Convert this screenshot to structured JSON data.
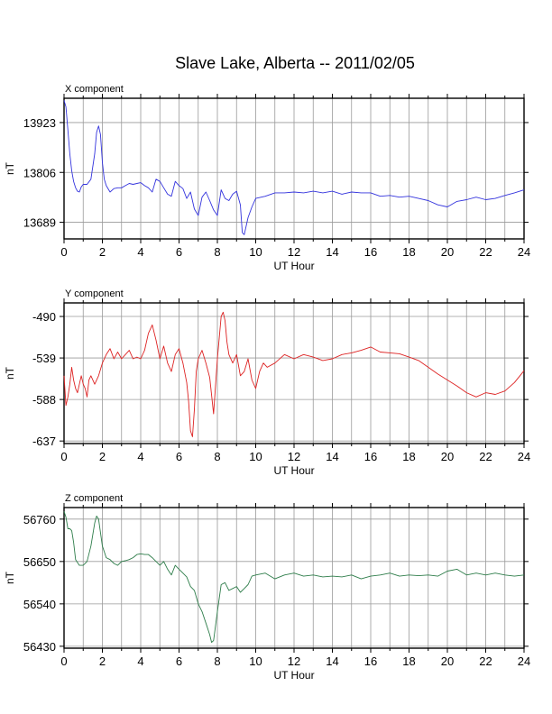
{
  "title": "Slave Lake, Alberta -- 2011/02/05",
  "chart_data": [
    {
      "type": "line",
      "panel_label": "X component",
      "xlabel": "UT Hour",
      "ylabel": "nT",
      "xlim": [
        0,
        24
      ],
      "ylim": [
        13650,
        13980
      ],
      "xticks": [
        "0",
        "2",
        "4",
        "6",
        "8",
        "10",
        "12",
        "14",
        "16",
        "18",
        "20",
        "22",
        "24"
      ],
      "yticks": [
        "13923",
        "13806",
        "13689"
      ],
      "ytick_values": [
        13923,
        13806,
        13689
      ],
      "grid": true,
      "color": "#3333dd",
      "x": [
        0,
        0.1,
        0.2,
        0.3,
        0.4,
        0.5,
        0.6,
        0.7,
        0.8,
        0.9,
        1.0,
        1.2,
        1.4,
        1.6,
        1.7,
        1.8,
        1.9,
        2.0,
        2.1,
        2.2,
        2.4,
        2.6,
        2.8,
        3.0,
        3.2,
        3.4,
        3.6,
        3.8,
        4.0,
        4.2,
        4.4,
        4.6,
        4.8,
        5.0,
        5.2,
        5.4,
        5.6,
        5.8,
        6.0,
        6.2,
        6.4,
        6.6,
        6.8,
        7.0,
        7.2,
        7.4,
        7.6,
        7.8,
        8.0,
        8.2,
        8.4,
        8.6,
        8.8,
        9.0,
        9.2,
        9.3,
        9.4,
        9.6,
        9.8,
        10.0,
        10.5,
        11.0,
        11.5,
        12.0,
        12.5,
        13.0,
        13.5,
        14.0,
        14.5,
        15.0,
        15.5,
        16.0,
        16.5,
        17.0,
        17.5,
        18.0,
        18.5,
        19.0,
        19.5,
        20.0,
        20.5,
        21.0,
        21.5,
        22.0,
        22.5,
        23.0,
        23.5,
        24.0
      ],
      "values": [
        13975,
        13960,
        13905,
        13850,
        13810,
        13785,
        13770,
        13762,
        13760,
        13772,
        13778,
        13778,
        13790,
        13850,
        13900,
        13915,
        13895,
        13830,
        13790,
        13775,
        13760,
        13768,
        13770,
        13770,
        13775,
        13780,
        13778,
        13780,
        13782,
        13775,
        13770,
        13760,
        13790,
        13785,
        13770,
        13755,
        13750,
        13785,
        13775,
        13768,
        13745,
        13760,
        13720,
        13705,
        13748,
        13760,
        13740,
        13718,
        13705,
        13765,
        13745,
        13740,
        13755,
        13762,
        13730,
        13665,
        13660,
        13700,
        13725,
        13745,
        13750,
        13758,
        13758,
        13760,
        13758,
        13762,
        13758,
        13762,
        13755,
        13760,
        13758,
        13758,
        13750,
        13752,
        13748,
        13750,
        13745,
        13740,
        13730,
        13725,
        13738,
        13742,
        13748,
        13742,
        13745,
        13752,
        13758,
        13765
      ]
    },
    {
      "type": "line",
      "panel_label": "Y component",
      "xlabel": "UT Hour",
      "ylabel": "nT",
      "xlim": [
        0,
        24
      ],
      "ylim": [
        -640,
        -474
      ],
      "xticks": [
        "0",
        "2",
        "4",
        "6",
        "8",
        "10",
        "12",
        "14",
        "16",
        "18",
        "20",
        "22",
        "24"
      ],
      "yticks": [
        "-490",
        "-539",
        "-588",
        "-637"
      ],
      "ytick_values": [
        -490,
        -539,
        -588,
        -637
      ],
      "grid": true,
      "color": "#dd2222",
      "x": [
        0,
        0.1,
        0.2,
        0.3,
        0.4,
        0.5,
        0.6,
        0.7,
        0.8,
        0.9,
        1.0,
        1.1,
        1.2,
        1.3,
        1.4,
        1.6,
        1.8,
        2.0,
        2.2,
        2.4,
        2.6,
        2.8,
        3.0,
        3.2,
        3.4,
        3.6,
        3.8,
        4.0,
        4.2,
        4.4,
        4.6,
        4.8,
        5.0,
        5.2,
        5.4,
        5.6,
        5.8,
        6.0,
        6.2,
        6.4,
        6.5,
        6.6,
        6.7,
        6.8,
        6.9,
        7.0,
        7.2,
        7.4,
        7.6,
        7.8,
        8.0,
        8.1,
        8.2,
        8.3,
        8.4,
        8.5,
        8.6,
        8.8,
        9.0,
        9.2,
        9.4,
        9.6,
        9.8,
        10.0,
        10.2,
        10.4,
        10.6,
        11.0,
        11.5,
        12.0,
        12.5,
        13.0,
        13.5,
        14.0,
        14.5,
        15.0,
        15.5,
        16.0,
        16.5,
        17.0,
        17.5,
        18.0,
        18.5,
        19.0,
        19.5,
        20.0,
        20.5,
        21.0,
        21.5,
        22.0,
        22.5,
        23.0,
        23.5,
        24.0
      ],
      "values": [
        -560,
        -595,
        -585,
        -570,
        -550,
        -565,
        -575,
        -580,
        -570,
        -560,
        -570,
        -575,
        -585,
        -565,
        -560,
        -570,
        -560,
        -545,
        -535,
        -528,
        -540,
        -532,
        -540,
        -535,
        -530,
        -540,
        -538,
        -540,
        -530,
        -510,
        -500,
        -518,
        -540,
        -525,
        -545,
        -555,
        -535,
        -528,
        -545,
        -568,
        -590,
        -625,
        -632,
        -600,
        -555,
        -540,
        -530,
        -545,
        -562,
        -605,
        -540,
        -515,
        -490,
        -485,
        -495,
        -520,
        -535,
        -545,
        -535,
        -560,
        -555,
        -540,
        -565,
        -575,
        -555,
        -545,
        -550,
        -545,
        -535,
        -540,
        -535,
        -538,
        -542,
        -540,
        -535,
        -533,
        -530,
        -526,
        -532,
        -533,
        -534,
        -538,
        -542,
        -550,
        -558,
        -565,
        -572,
        -580,
        -585,
        -580,
        -582,
        -578,
        -568,
        -554
      ]
    },
    {
      "type": "line",
      "panel_label": "Z component",
      "xlabel": "UT Hour",
      "ylabel": "nT",
      "xlim": [
        0,
        24
      ],
      "ylim": [
        56425,
        56790
      ],
      "xticks": [
        "0",
        "2",
        "4",
        "6",
        "8",
        "10",
        "12",
        "14",
        "16",
        "18",
        "20",
        "22",
        "24"
      ],
      "yticks": [
        "56760",
        "56650",
        "56540",
        "56430"
      ],
      "ytick_values": [
        56760,
        56650,
        56540,
        56430
      ],
      "grid": true,
      "color": "#2e7d4a",
      "x": [
        0,
        0.1,
        0.2,
        0.3,
        0.4,
        0.5,
        0.6,
        0.8,
        1.0,
        1.2,
        1.4,
        1.5,
        1.6,
        1.7,
        1.8,
        1.9,
        2.0,
        2.2,
        2.4,
        2.6,
        2.8,
        3.0,
        3.2,
        3.4,
        3.6,
        3.8,
        4.0,
        4.2,
        4.4,
        4.6,
        4.8,
        5.0,
        5.2,
        5.4,
        5.6,
        5.8,
        6.0,
        6.2,
        6.4,
        6.6,
        6.8,
        7.0,
        7.2,
        7.4,
        7.6,
        7.7,
        7.8,
        8.0,
        8.2,
        8.4,
        8.6,
        8.8,
        9.0,
        9.2,
        9.4,
        9.6,
        9.8,
        10.0,
        10.5,
        11.0,
        11.5,
        12.0,
        12.5,
        13.0,
        13.5,
        14.0,
        14.5,
        15.0,
        15.5,
        16.0,
        16.5,
        17.0,
        17.5,
        18.0,
        18.5,
        19.0,
        19.5,
        20.0,
        20.5,
        21.0,
        21.5,
        22.0,
        22.5,
        23.0,
        23.5,
        24.0
      ],
      "values": [
        56780,
        56765,
        56735,
        56735,
        56730,
        56700,
        56655,
        56640,
        56640,
        56650,
        56690,
        56720,
        56750,
        56768,
        56760,
        56725,
        56690,
        56660,
        56655,
        56645,
        56640,
        56650,
        56652,
        56655,
        56660,
        56668,
        56670,
        56668,
        56668,
        56660,
        56650,
        56640,
        56650,
        56630,
        56615,
        56640,
        56630,
        56620,
        56610,
        56585,
        56575,
        56540,
        56520,
        56490,
        56460,
        56440,
        56445,
        56520,
        56590,
        56595,
        56575,
        56580,
        56585,
        56570,
        56580,
        56590,
        56612,
        56615,
        56620,
        56605,
        56615,
        56620,
        56612,
        56615,
        56610,
        56612,
        56610,
        56615,
        56605,
        56612,
        56615,
        56620,
        56612,
        56615,
        56613,
        56615,
        56612,
        56625,
        56630,
        56615,
        56620,
        56615,
        56620,
        56615,
        56612,
        56615
      ]
    }
  ]
}
